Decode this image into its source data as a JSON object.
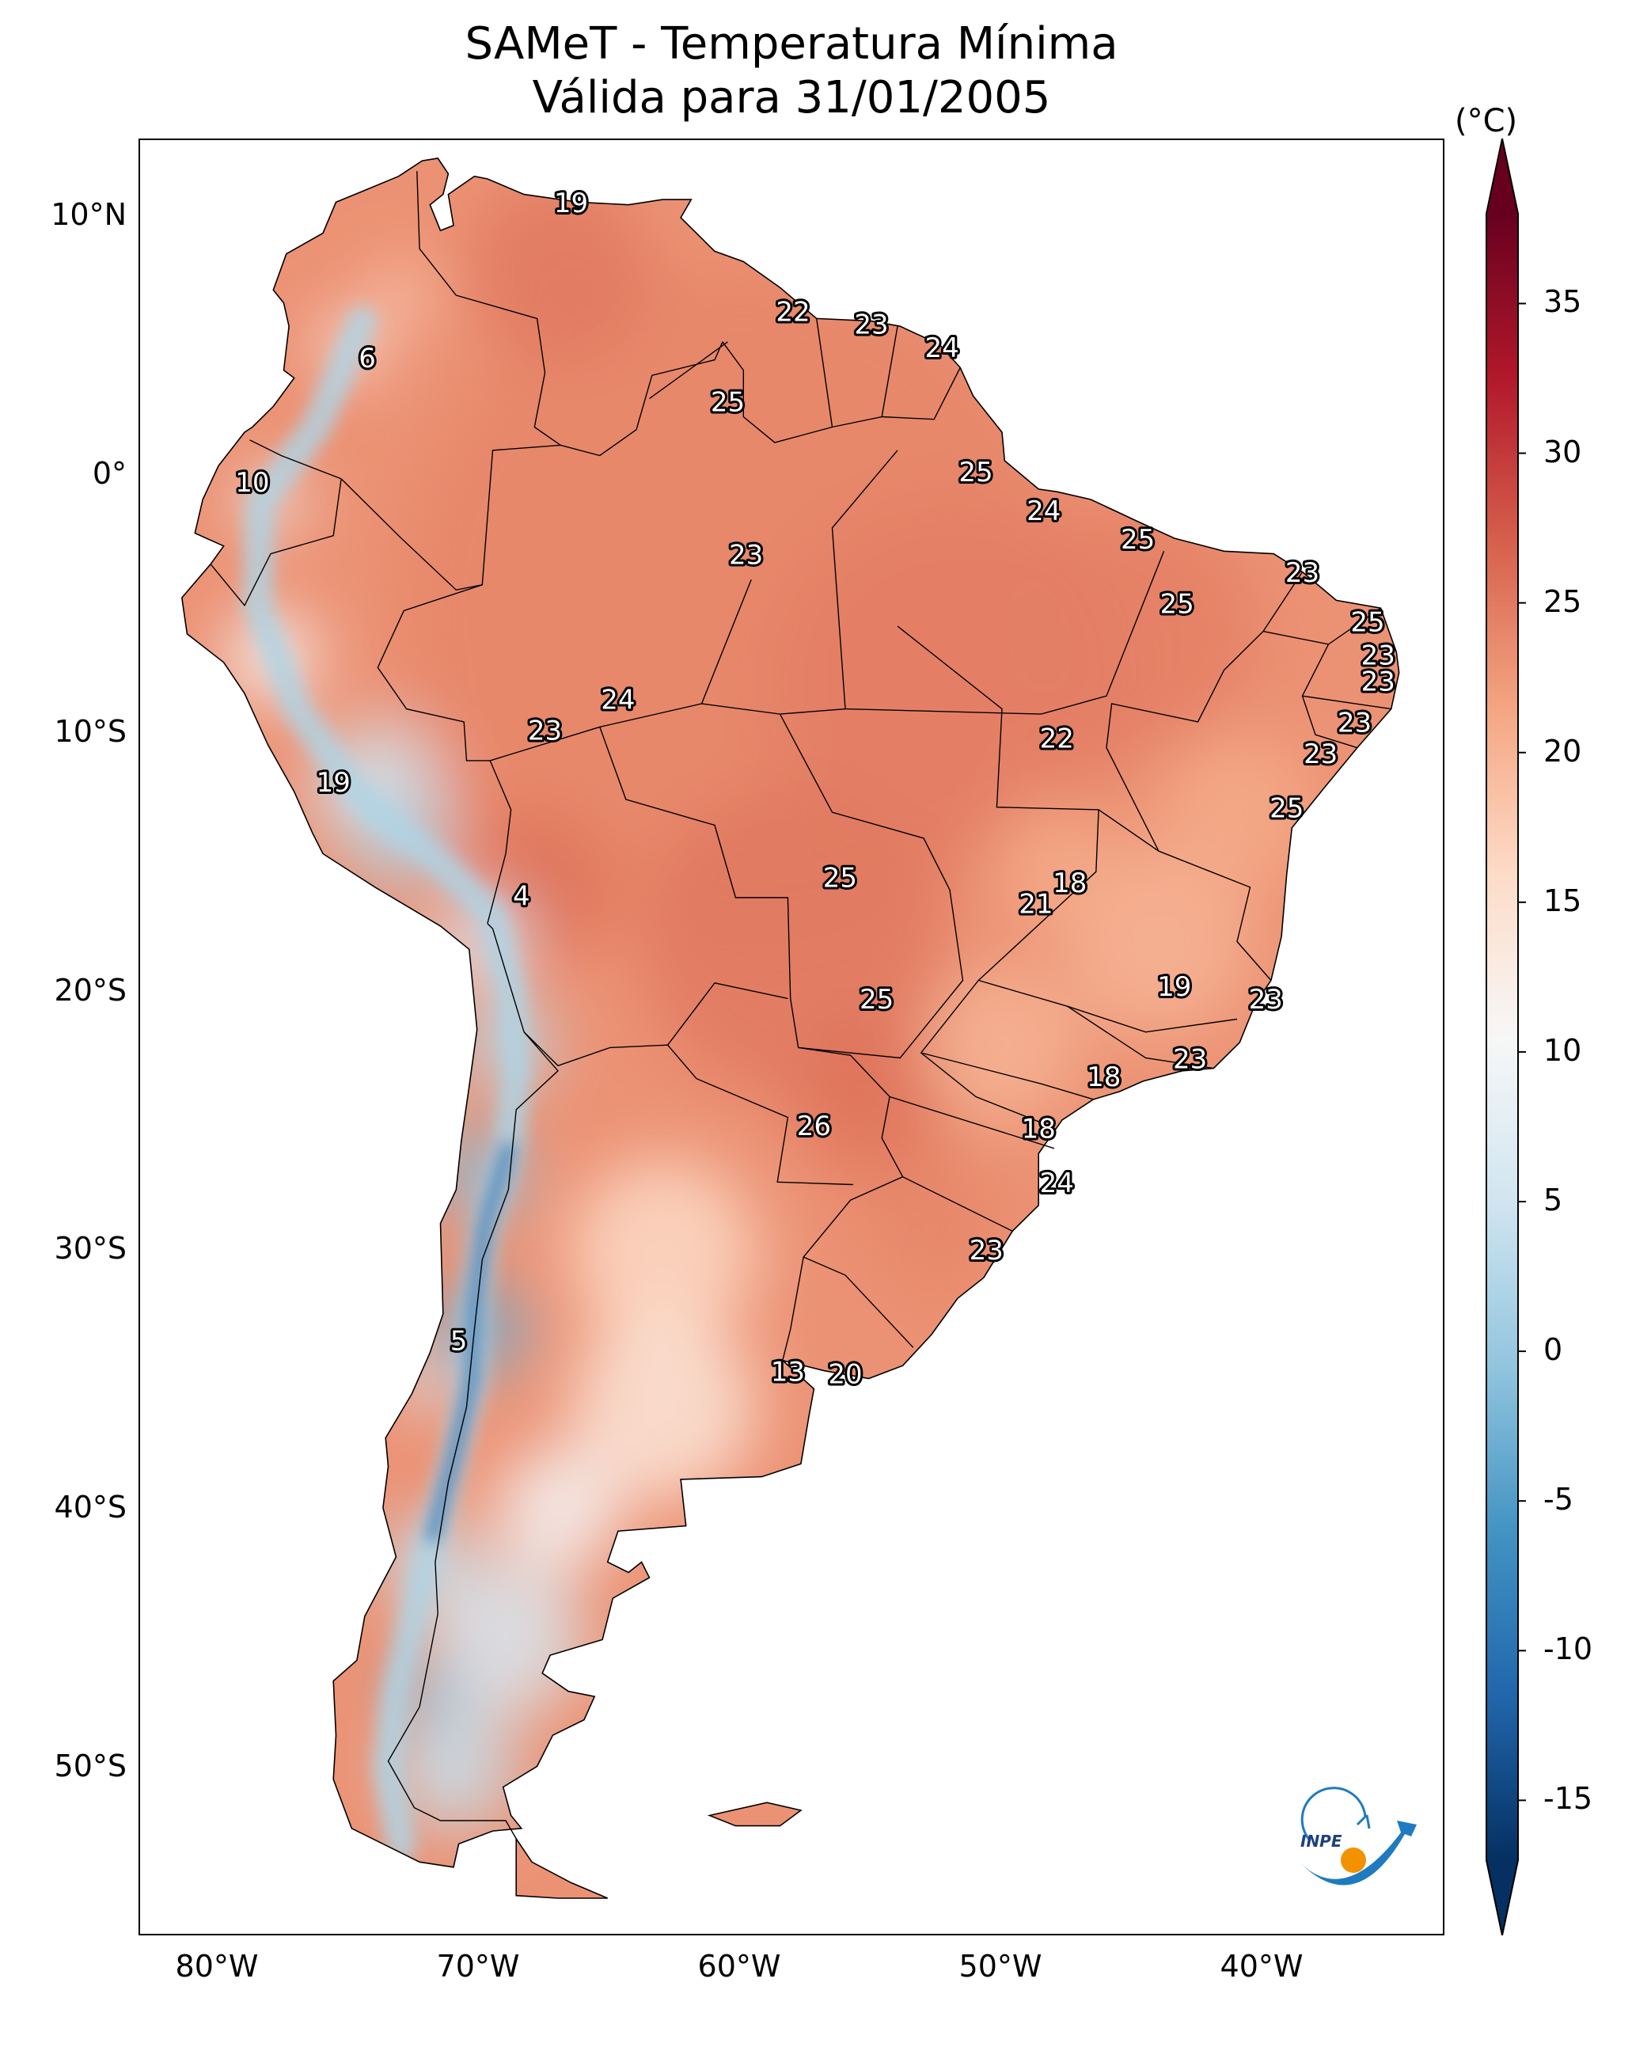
{
  "title": {
    "line1": "SAMeT - Temperatura Mínima",
    "line2": "Válida para 31/01/2005"
  },
  "axes": {
    "lat_ticks": [
      {
        "lat": 10,
        "label": "10°N"
      },
      {
        "lat": 0,
        "label": "0°"
      },
      {
        "lat": -10,
        "label": "10°S"
      },
      {
        "lat": -20,
        "label": "20°S"
      },
      {
        "lat": -30,
        "label": "30°S"
      },
      {
        "lat": -40,
        "label": "40°S"
      },
      {
        "lat": -50,
        "label": "50°S"
      }
    ],
    "lon_ticks": [
      {
        "lon": -80,
        "label": "80°W"
      },
      {
        "lon": -70,
        "label": "70°W"
      },
      {
        "lon": -60,
        "label": "60°W"
      },
      {
        "lon": -50,
        "label": "50°W"
      },
      {
        "lon": -40,
        "label": "40°W"
      }
    ],
    "extent": {
      "lon_min": -83,
      "lon_max": -33,
      "lat_min": -56.5,
      "lat_max": 13
    }
  },
  "colorbar": {
    "unit": "(°C)",
    "range": [
      -17,
      38
    ],
    "ticks": [
      {
        "value": 35,
        "label": "35"
      },
      {
        "value": 30,
        "label": "30"
      },
      {
        "value": 25,
        "label": "25"
      },
      {
        "value": 20,
        "label": "20"
      },
      {
        "value": 15,
        "label": "15"
      },
      {
        "value": 10,
        "label": "10"
      },
      {
        "value": 5,
        "label": "5"
      },
      {
        "value": 0,
        "label": "0"
      },
      {
        "value": -5,
        "label": "-5"
      },
      {
        "value": -10,
        "label": "-10"
      },
      {
        "value": -15,
        "label": "-15"
      }
    ],
    "colormap": "RdBu_r",
    "extend": "both"
  },
  "station_labels": [
    {
      "value": "19",
      "lon": -66.5,
      "lat": 10.5
    },
    {
      "value": "22",
      "lon": -58.0,
      "lat": 6.3
    },
    {
      "value": "23",
      "lon": -55.0,
      "lat": 5.8
    },
    {
      "value": "24",
      "lon": -52.3,
      "lat": 4.9
    },
    {
      "value": "6",
      "lon": -74.3,
      "lat": 4.5
    },
    {
      "value": "25",
      "lon": -60.5,
      "lat": 2.8
    },
    {
      "value": "25",
      "lon": -51.0,
      "lat": 0.1
    },
    {
      "value": "10",
      "lon": -78.7,
      "lat": -0.3
    },
    {
      "value": "24",
      "lon": -48.4,
      "lat": -1.4
    },
    {
      "value": "25",
      "lon": -44.8,
      "lat": -2.5
    },
    {
      "value": "23",
      "lon": -59.8,
      "lat": -3.1
    },
    {
      "value": "23",
      "lon": -38.5,
      "lat": -3.8
    },
    {
      "value": "25",
      "lon": -43.3,
      "lat": -5.0
    },
    {
      "value": "25",
      "lon": -36.0,
      "lat": -5.7
    },
    {
      "value": "23",
      "lon": -35.6,
      "lat": -7.0
    },
    {
      "value": "23",
      "lon": -35.6,
      "lat": -8.0
    },
    {
      "value": "24",
      "lon": -64.7,
      "lat": -8.7
    },
    {
      "value": "23",
      "lon": -36.5,
      "lat": -9.6
    },
    {
      "value": "22",
      "lon": -47.9,
      "lat": -10.2
    },
    {
      "value": "23",
      "lon": -67.5,
      "lat": -9.9
    },
    {
      "value": "23",
      "lon": -37.8,
      "lat": -10.8
    },
    {
      "value": "19",
      "lon": -75.6,
      "lat": -11.9
    },
    {
      "value": "25",
      "lon": -39.1,
      "lat": -12.9
    },
    {
      "value": "25",
      "lon": -56.2,
      "lat": -15.6
    },
    {
      "value": "18",
      "lon": -47.4,
      "lat": -15.8
    },
    {
      "value": "4",
      "lon": -68.4,
      "lat": -16.3
    },
    {
      "value": "21",
      "lon": -48.7,
      "lat": -16.6
    },
    {
      "value": "19",
      "lon": -43.4,
      "lat": -19.8
    },
    {
      "value": "25",
      "lon": -54.8,
      "lat": -20.3
    },
    {
      "value": "23",
      "lon": -39.9,
      "lat": -20.3
    },
    {
      "value": "23",
      "lon": -42.8,
      "lat": -22.6
    },
    {
      "value": "18",
      "lon": -46.1,
      "lat": -23.3
    },
    {
      "value": "26",
      "lon": -57.2,
      "lat": -25.2
    },
    {
      "value": "18",
      "lon": -48.6,
      "lat": -25.3
    },
    {
      "value": "24",
      "lon": -47.9,
      "lat": -27.4
    },
    {
      "value": "23",
      "lon": -50.6,
      "lat": -30.0
    },
    {
      "value": "5",
      "lon": -70.8,
      "lat": -33.5
    },
    {
      "value": "13",
      "lon": -58.2,
      "lat": -34.7
    },
    {
      "value": "20",
      "lon": -56.0,
      "lat": -34.8
    }
  ],
  "logo": {
    "name": "inpe-logo",
    "text": "INPE",
    "colors": {
      "blue": "#1e7bbf",
      "orange": "#f39200"
    }
  }
}
